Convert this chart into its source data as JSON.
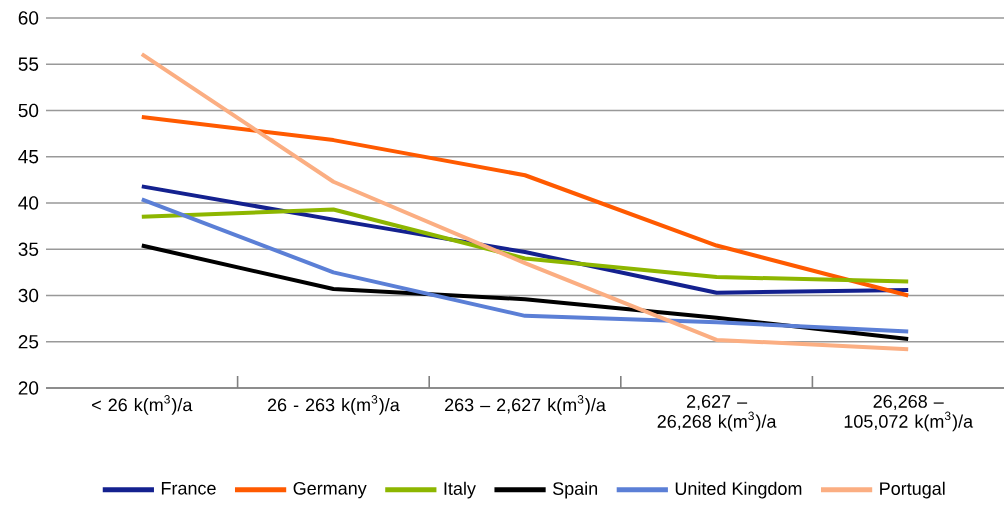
{
  "chart_data": {
    "type": "line",
    "categories": [
      "< 26 k(m$^{3}$)/a",
      "26 - 263 k(m$^{3}$)/a",
      "263 – 2,627 k(m$^{3}$)/a",
      "2,627 – 26,268 k(m$^{3}$)/a",
      "26,268 – 105,072 k(m$^{3}$)/a"
    ],
    "series": [
      {
        "name": "France",
        "color": "#14218f",
        "values": [
          41.8,
          38.2,
          34.7,
          30.3,
          30.6
        ]
      },
      {
        "name": "Germany",
        "color": "#ff5a00",
        "values": [
          49.3,
          46.8,
          43.0,
          35.4,
          30.0
        ]
      },
      {
        "name": "Italy",
        "color": "#8db600",
        "values": [
          38.5,
          39.3,
          34.0,
          32.0,
          31.5
        ]
      },
      {
        "name": "Spain",
        "color": "#000000",
        "values": [
          35.4,
          30.7,
          29.6,
          27.6,
          25.3
        ]
      },
      {
        "name": "United Kingdom",
        "color": "#5b7fd6",
        "values": [
          40.4,
          32.5,
          27.8,
          27.1,
          26.1
        ]
      },
      {
        "name": "Portugal",
        "color": "#fbae82",
        "values": [
          56.1,
          42.3,
          33.5,
          25.2,
          24.2
        ]
      }
    ],
    "ylim": [
      20,
      60
    ],
    "yticks": [
      20,
      25,
      30,
      35,
      40,
      45,
      50,
      55,
      60
    ],
    "grid": "y",
    "legend": "bottom"
  }
}
